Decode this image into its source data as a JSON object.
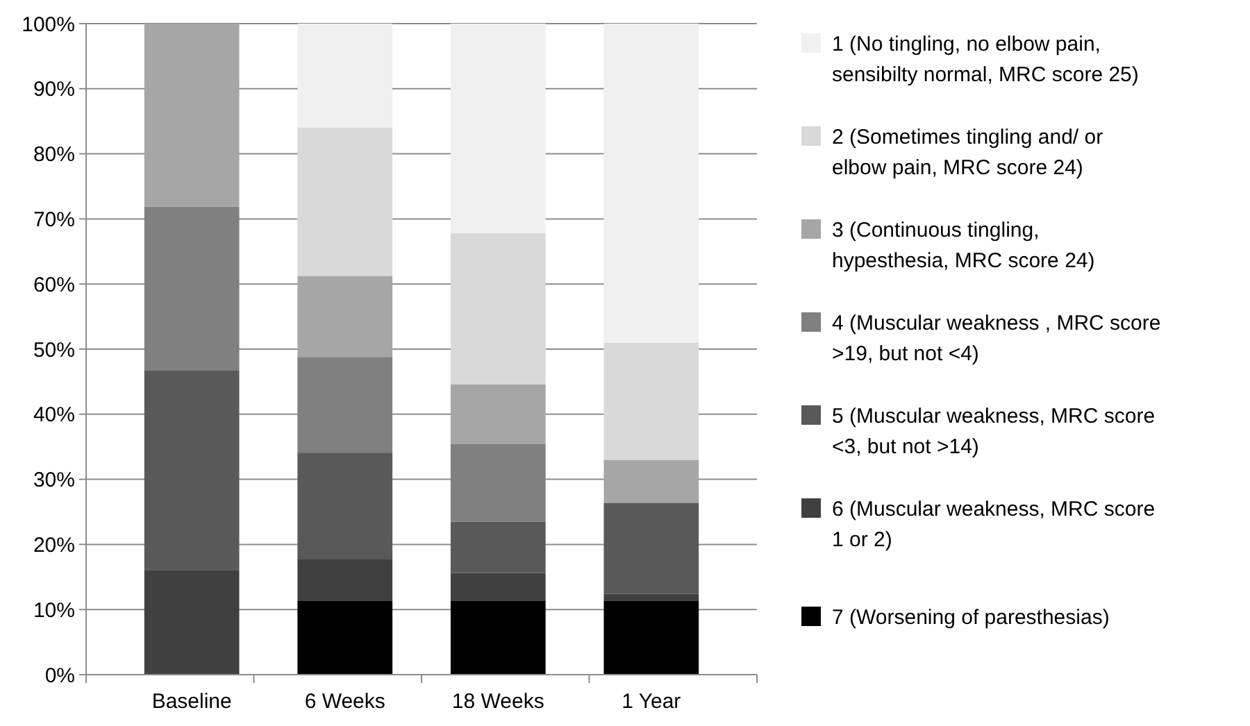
{
  "chart_data": {
    "type": "bar",
    "stacked": true,
    "categories": [
      "Baseline",
      "6 Weeks",
      "18 Weeks",
      "1 Year"
    ],
    "series": [
      {
        "name": "7 (Worsening of paresthesias)",
        "color": "#000000",
        "values": [
          0,
          11.3,
          11.3,
          11.3
        ]
      },
      {
        "name": "6 (Muscular weakness, MRC score 1 or 2)",
        "color": "#404040",
        "values": [
          16,
          6.4,
          4.3,
          1.1
        ]
      },
      {
        "name": "5 (Muscular weakness, MRC score <3, but not >14)",
        "color": "#595959",
        "values": [
          30.7,
          16.4,
          7.9,
          14
        ]
      },
      {
        "name": "4 (Muscular weakness , MRC score >19, but not <4)",
        "color": "#808080",
        "values": [
          25.2,
          14.7,
          11.9,
          0
        ]
      },
      {
        "name": "3 (Continuous tingling, hypesthesia, MRC score 24)",
        "color": "#a6a6a6",
        "values": [
          28.1,
          12.4,
          9.2,
          6.6
        ]
      },
      {
        "name": "2 (Sometimes tingling and/ or elbow pain, MRC score 24)",
        "color": "#d9d9d9",
        "values": [
          0,
          22.8,
          23.2,
          18
        ]
      },
      {
        "name": "1 (No tingling, no elbow pain, sensibilty normal, MRC score 25)",
        "color": "#f0f0f0",
        "values": [
          0,
          16,
          32.2,
          49
        ]
      }
    ],
    "ylim": [
      0,
      100
    ],
    "yticks": [
      {
        "value": 0,
        "label": "0%"
      },
      {
        "value": 10,
        "label": "10%"
      },
      {
        "value": 20,
        "label": "20%"
      },
      {
        "value": 30,
        "label": "30%"
      },
      {
        "value": 40,
        "label": "40%"
      },
      {
        "value": 50,
        "label": "50%"
      },
      {
        "value": 60,
        "label": "60%"
      },
      {
        "value": 70,
        "label": "70%"
      },
      {
        "value": 80,
        "label": "80%"
      },
      {
        "value": 90,
        "label": "90%"
      },
      {
        "value": 100,
        "label": "100%"
      }
    ],
    "grid": "y",
    "legend": "right"
  }
}
